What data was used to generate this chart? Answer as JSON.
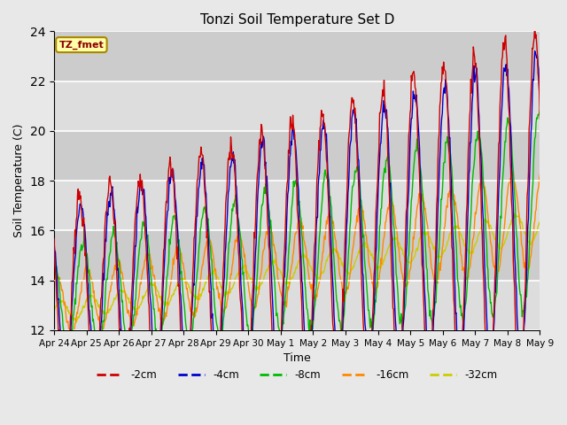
{
  "title": "Tonzi Soil Temperature Set D",
  "xlabel": "Time",
  "ylabel": "Soil Temperature (C)",
  "ylim": [
    12,
    24
  ],
  "yticks": [
    12,
    14,
    16,
    18,
    20,
    22,
    24
  ],
  "x_labels": [
    "Apr 24",
    "Apr 25",
    "Apr 26",
    "Apr 27",
    "Apr 28",
    "Apr 29",
    "Apr 30",
    "May 1",
    "May 2",
    "May 3",
    "May 4",
    "May 5",
    "May 6",
    "May 7",
    "May 8",
    "May 9"
  ],
  "line_colors": {
    "-2cm": "#cc0000",
    "-4cm": "#0000cc",
    "-8cm": "#00bb00",
    "-16cm": "#ff8800",
    "-32cm": "#cccc00"
  },
  "legend_label": "TZ_fmet",
  "fig_bg_color": "#e8e8e8",
  "plot_bg_color": "#dddddd",
  "band_colors": [
    "#dddddd",
    "#cccccc"
  ]
}
